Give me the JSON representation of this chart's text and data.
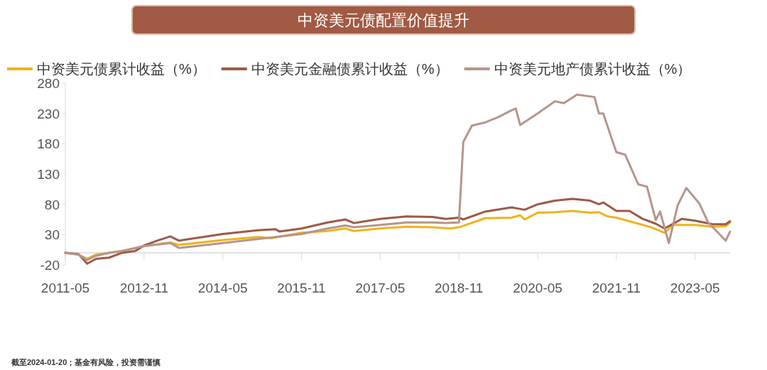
{
  "chart_data": {
    "type": "line",
    "title": "中资美元债配置价值提升",
    "annotations": [
      "截至2024-01-20；基金有风险，投资需谨慎"
    ],
    "legend": "top",
    "marker": "none",
    "line_style": "solid",
    "grid": false,
    "xlim": [
      "2011-05",
      "2024-01"
    ],
    "xticks": [
      "2011-05",
      "2012-11",
      "2014-05",
      "2015-11",
      "2017-05",
      "2018-11",
      "2020-05",
      "2021-11",
      "2023-05"
    ],
    "ylim": [
      -20,
      280
    ],
    "yticks": [
      -20,
      30,
      80,
      130,
      180,
      230,
      280
    ],
    "series": [
      {
        "name": "中资美元债累计收益（%）",
        "color": "#f0b31c",
        "x": [
          "2011-05",
          "2011-08",
          "2011-10",
          "2011-12",
          "2012-03",
          "2012-06",
          "2012-11",
          "2013-05",
          "2013-07",
          "2014-05",
          "2015-01",
          "2015-04",
          "2015-11",
          "2016-05",
          "2016-09",
          "2016-11",
          "2017-05",
          "2017-11",
          "2018-05",
          "2018-09",
          "2018-11",
          "2019-05",
          "2019-11",
          "2020-01",
          "2020-02",
          "2020-05",
          "2020-09",
          "2021-01",
          "2021-05",
          "2021-07",
          "2021-09",
          "2021-11",
          "2022-03",
          "2022-07",
          "2022-10",
          "2022-12",
          "2023-05",
          "2023-09",
          "2023-12",
          "2024-01"
        ],
        "values": [
          0,
          -3,
          -10,
          -3,
          0,
          3,
          11,
          17,
          13,
          21,
          26,
          24,
          33,
          36,
          40,
          36,
          40,
          43,
          42,
          40,
          42,
          57,
          58,
          62,
          55,
          66,
          67,
          69,
          66,
          67,
          60,
          58,
          50,
          42,
          33,
          46,
          46,
          43,
          44,
          50
        ]
      },
      {
        "name": "中资美元金融债累计收益（%）",
        "color": "#9c5a46",
        "x": [
          "2011-05",
          "2011-08",
          "2011-10",
          "2011-12",
          "2012-03",
          "2012-06",
          "2012-09",
          "2012-11",
          "2013-02",
          "2013-05",
          "2013-07",
          "2014-05",
          "2015-01",
          "2015-05",
          "2015-06",
          "2015-11",
          "2016-05",
          "2016-09",
          "2016-11",
          "2017-05",
          "2017-11",
          "2018-05",
          "2018-08",
          "2018-11",
          "2018-12",
          "2019-05",
          "2019-11",
          "2020-02",
          "2020-05",
          "2020-09",
          "2021-01",
          "2021-05",
          "2021-07",
          "2021-08",
          "2021-11",
          "2022-02",
          "2022-05",
          "2022-08",
          "2022-10",
          "2022-12",
          "2023-02",
          "2023-05",
          "2023-09",
          "2023-12",
          "2024-01"
        ],
        "values": [
          0,
          -2,
          -18,
          -10,
          -8,
          0,
          3,
          12,
          20,
          27,
          20,
          31,
          37,
          39,
          35,
          40,
          50,
          55,
          49,
          56,
          60,
          59,
          56,
          58,
          55,
          68,
          75,
          71,
          80,
          86,
          89,
          86,
          80,
          83,
          69,
          69,
          56,
          48,
          40,
          48,
          56,
          53,
          47,
          47,
          52
        ]
      },
      {
        "name": "中资美元地产债累计收益（%）",
        "color": "#b5958c",
        "x": [
          "2011-05",
          "2011-08",
          "2011-10",
          "2011-12",
          "2012-03",
          "2012-06",
          "2012-11",
          "2013-05",
          "2013-07",
          "2014-05",
          "2015-05",
          "2015-11",
          "2016-05",
          "2016-09",
          "2016-11",
          "2017-05",
          "2017-11",
          "2018-05",
          "2018-08",
          "2018-11",
          "2018-12",
          "2019-02",
          "2019-05",
          "2019-08",
          "2019-11",
          "2019-12",
          "2020-01",
          "2020-05",
          "2020-09",
          "2020-11",
          "2021-02",
          "2021-06",
          "2021-07",
          "2021-08",
          "2021-10",
          "2021-11",
          "2022-01",
          "2022-04",
          "2022-06",
          "2022-08",
          "2022-09",
          "2022-11",
          "2023-01",
          "2023-03",
          "2023-06",
          "2023-08",
          "2023-10",
          "2023-12",
          "2024-01"
        ],
        "values": [
          0,
          -3,
          -12,
          -5,
          0,
          3,
          11,
          16,
          8,
          16,
          26,
          31,
          40,
          45,
          42,
          46,
          50,
          50,
          49,
          50,
          183,
          210,
          215,
          224,
          235,
          238,
          211,
          230,
          250,
          247,
          261,
          257,
          230,
          230,
          187,
          166,
          162,
          113,
          109,
          54,
          68,
          16,
          78,
          107,
          81,
          50,
          35,
          20,
          35
        ]
      }
    ]
  }
}
